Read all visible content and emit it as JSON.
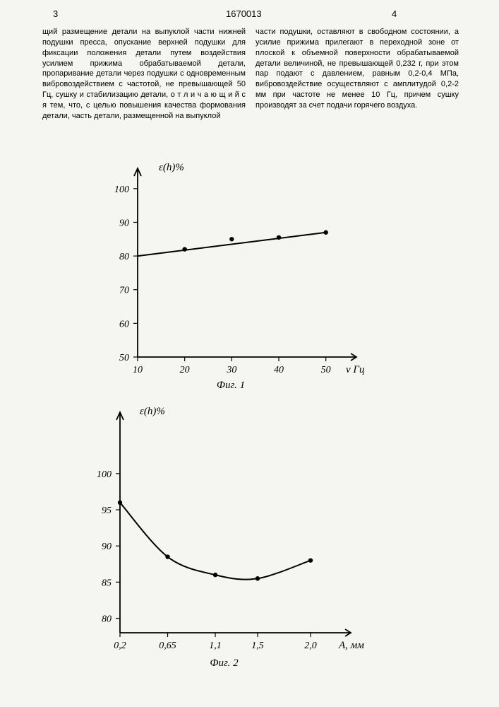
{
  "header": {
    "left_page_num": "3",
    "doc_number": "1670013",
    "right_page_num": "4"
  },
  "text": {
    "col1": "щий размещение детали на выпуклой части нижней подушки пресса, опускание верхней подушки для фиксации положения детали путем воздействия усилием прижима обрабатываемой детали, пропаривание детали через подушки с одновременным вибровоздействием с частотой, не превышающей 50 Гц, сушку и стабилизацию детали, о т л и ч а ю щ и й с я тем, что, с целью повышения качества формования детали, часть детали, размещенной на выпуклой",
    "col2": "части подушки, оставляют в свободном состоянии, а усилие прижима прилегают в переходной зоне от плоской к объемной поверхности обрабатываемой детали величиной, не превышающей 0,232 г, при этом пар подают с давлением, равным 0,2-0,4 МПа, вибровоздействие осуществляют с амплитудой 0,2-2 мм при частоте не менее 10 Гц, причем сушку производят за счет подачи горячего воздуха."
  },
  "chart1": {
    "type": "line",
    "y_label": "ε(h)%",
    "x_label": "ν Гц",
    "caption": "Фиг. 1",
    "y_ticks": [
      50,
      60,
      70,
      80,
      90,
      100
    ],
    "x_ticks": [
      10,
      20,
      30,
      40,
      50
    ],
    "ylim": [
      50,
      105
    ],
    "xlim": [
      10,
      55
    ],
    "points": [
      {
        "x": 20,
        "y": 82
      },
      {
        "x": 30,
        "y": 85
      },
      {
        "x": 40,
        "y": 85.5
      },
      {
        "x": 50,
        "y": 87
      }
    ],
    "line_from": {
      "x": 10,
      "y": 80
    },
    "line_to": {
      "x": 50,
      "y": 87
    },
    "marker_radius": 3.2,
    "line_width": 2,
    "color": "#000000",
    "background": "#f5f5f2"
  },
  "chart2": {
    "type": "line",
    "y_label": "ε(h)%",
    "x_label": "A, мм",
    "caption": "Фиг. 2",
    "y_ticks": [
      80,
      85,
      90,
      95,
      100
    ],
    "x_ticks_labels": [
      "0,2",
      "0,65",
      "1,1",
      "1,5",
      "2,0"
    ],
    "x_ticks_vals": [
      0.2,
      0.65,
      1.1,
      1.5,
      2.0
    ],
    "ylim": [
      78,
      108
    ],
    "xlim": [
      0.2,
      2.3
    ],
    "points": [
      {
        "x": 0.2,
        "y": 96
      },
      {
        "x": 0.65,
        "y": 88.5
      },
      {
        "x": 1.1,
        "y": 86
      },
      {
        "x": 1.5,
        "y": 85.5
      },
      {
        "x": 2.0,
        "y": 88
      }
    ],
    "marker_radius": 3.2,
    "line_width": 2,
    "color": "#000000",
    "background": "#f5f5f2"
  }
}
